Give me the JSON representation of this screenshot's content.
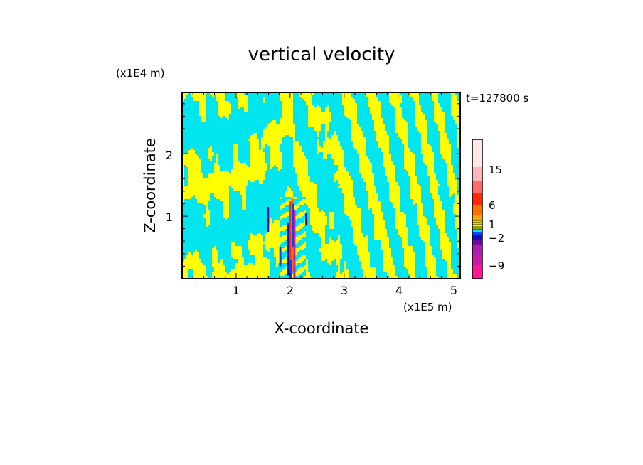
{
  "chart_data": {
    "type": "heatmap",
    "title": "vertical velocity",
    "xlabel": "X-coordinate",
    "ylabel": "Z-coordinate",
    "x_unit": "(x1E5 m)",
    "y_unit": "(x1E4 m)",
    "time_label": "t=127800 s",
    "xlim": [
      0,
      5.15
    ],
    "ylim": [
      0,
      2.98
    ],
    "x_ticks": [
      "1",
      "2",
      "3",
      "4",
      "5"
    ],
    "y_ticks": [
      "1",
      "2"
    ],
    "x_tick_values": [
      1,
      2,
      3,
      4,
      5
    ],
    "y_tick_values": [
      1,
      2
    ],
    "colorbar": {
      "labels": [
        "15",
        "6",
        "1",
        "−2",
        "−9"
      ],
      "label_values": [
        15,
        6,
        1,
        -2,
        -9
      ],
      "levels": [
        {
          "color": "#ff1493",
          "value": -12
        },
        {
          "color": "#cc1aa8",
          "value": -9
        },
        {
          "color": "#b01ab0",
          "value": -6
        },
        {
          "color": "#6a0aa0",
          "value": -4
        },
        {
          "color": "#1a10b0",
          "value": -3
        },
        {
          "color": "#1040ff",
          "value": -2
        },
        {
          "color": "#00e5ee",
          "value": -1
        },
        {
          "color": "#ffff00",
          "value": 0
        },
        {
          "color": "#f0d800",
          "value": 1
        },
        {
          "color": "#ffa500",
          "value": 2
        },
        {
          "color": "#ff7000",
          "value": 4
        },
        {
          "color": "#ff2a00",
          "value": 6
        },
        {
          "color": "#ff6a6a",
          "value": 10
        },
        {
          "color": "#ffb6b6",
          "value": 15
        },
        {
          "color": "#ffe8e8",
          "value": 20
        }
      ]
    },
    "background_colors": {
      "negative": "#00e5ee",
      "positive": "#ffff00"
    }
  }
}
